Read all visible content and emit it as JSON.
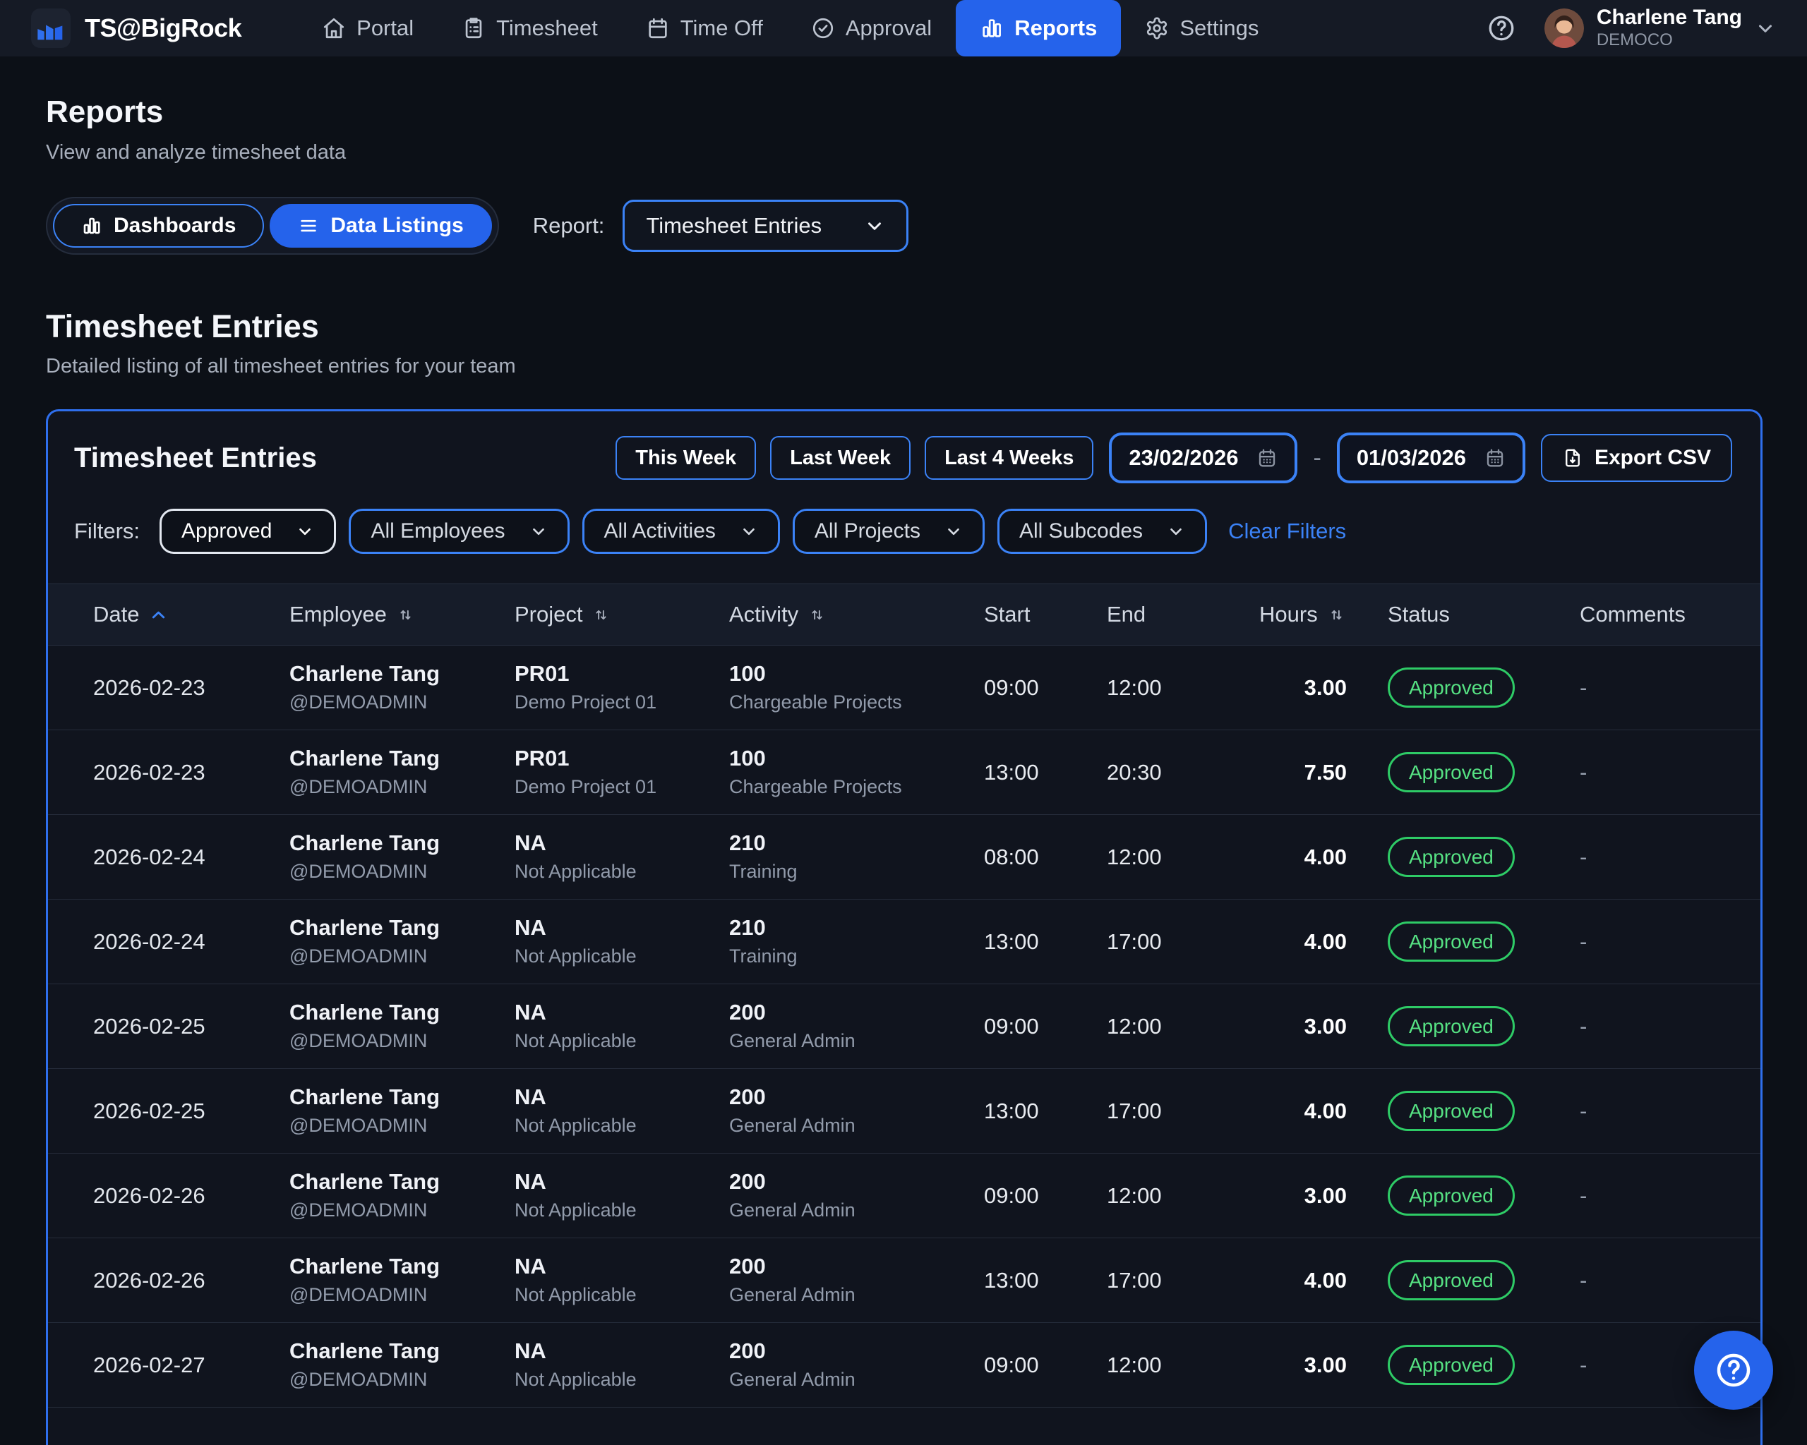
{
  "brand": "TS@BigRock",
  "nav": {
    "items": [
      {
        "label": "Portal",
        "icon": "home",
        "active": false
      },
      {
        "label": "Timesheet",
        "icon": "clipboard",
        "active": false
      },
      {
        "label": "Time Off",
        "icon": "calendar",
        "active": false
      },
      {
        "label": "Approval",
        "icon": "check-circle",
        "active": false
      },
      {
        "label": "Reports",
        "icon": "bar-chart",
        "active": true
      },
      {
        "label": "Settings",
        "icon": "gear",
        "active": false
      }
    ],
    "user": {
      "name": "Charlene Tang",
      "org": "DEMOCO"
    }
  },
  "page": {
    "title": "Reports",
    "subtitle": "View and analyze timesheet data"
  },
  "toggle": {
    "options": [
      {
        "label": "Dashboards",
        "icon": "bar-chart",
        "active": false
      },
      {
        "label": "Data Listings",
        "icon": "list",
        "active": true
      }
    ]
  },
  "report_picker": {
    "label": "Report:",
    "value": "Timesheet Entries"
  },
  "section": {
    "title": "Timesheet Entries",
    "subtitle": "Detailed listing of all timesheet entries for your team"
  },
  "card": {
    "title": "Timesheet Entries",
    "range_buttons": [
      "This Week",
      "Last Week",
      "Last 4 Weeks"
    ],
    "date_from": "23/02/2026",
    "date_separator": "-",
    "date_to": "01/03/2026",
    "export_label": "Export CSV",
    "filters_label": "Filters:",
    "filter_selects": [
      {
        "value": "Approved",
        "style": "status"
      },
      {
        "value": "All Employees",
        "style": "blue"
      },
      {
        "value": "All Activities",
        "style": "blue"
      },
      {
        "value": "All Projects",
        "style": "blue"
      },
      {
        "value": "All Subcodes",
        "style": "blue"
      }
    ],
    "clear_filters": "Clear Filters"
  },
  "table": {
    "columns": [
      {
        "label": "Date",
        "sort": "asc"
      },
      {
        "label": "Employee",
        "sort": "both"
      },
      {
        "label": "Project",
        "sort": "both"
      },
      {
        "label": "Activity",
        "sort": "both"
      },
      {
        "label": "Start",
        "sort": null
      },
      {
        "label": "End",
        "sort": null
      },
      {
        "label": "Hours",
        "sort": "both"
      },
      {
        "label": "Status",
        "sort": null
      },
      {
        "label": "Comments",
        "sort": null
      }
    ],
    "rows": [
      {
        "date": "2026-02-23",
        "employee": "Charlene Tang",
        "employee_sub": "@DEMOADMIN",
        "project": "PR01",
        "project_sub": "Demo Project 01",
        "activity": "100",
        "activity_sub": "Chargeable Projects",
        "start": "09:00",
        "end": "12:00",
        "hours": "3.00",
        "status": "Approved",
        "comments": "-"
      },
      {
        "date": "2026-02-23",
        "employee": "Charlene Tang",
        "employee_sub": "@DEMOADMIN",
        "project": "PR01",
        "project_sub": "Demo Project 01",
        "activity": "100",
        "activity_sub": "Chargeable Projects",
        "start": "13:00",
        "end": "20:30",
        "hours": "7.50",
        "status": "Approved",
        "comments": "-"
      },
      {
        "date": "2026-02-24",
        "employee": "Charlene Tang",
        "employee_sub": "@DEMOADMIN",
        "project": "NA",
        "project_sub": "Not Applicable",
        "activity": "210",
        "activity_sub": "Training",
        "start": "08:00",
        "end": "12:00",
        "hours": "4.00",
        "status": "Approved",
        "comments": "-"
      },
      {
        "date": "2026-02-24",
        "employee": "Charlene Tang",
        "employee_sub": "@DEMOADMIN",
        "project": "NA",
        "project_sub": "Not Applicable",
        "activity": "210",
        "activity_sub": "Training",
        "start": "13:00",
        "end": "17:00",
        "hours": "4.00",
        "status": "Approved",
        "comments": "-"
      },
      {
        "date": "2026-02-25",
        "employee": "Charlene Tang",
        "employee_sub": "@DEMOADMIN",
        "project": "NA",
        "project_sub": "Not Applicable",
        "activity": "200",
        "activity_sub": "General Admin",
        "start": "09:00",
        "end": "12:00",
        "hours": "3.00",
        "status": "Approved",
        "comments": "-"
      },
      {
        "date": "2026-02-25",
        "employee": "Charlene Tang",
        "employee_sub": "@DEMOADMIN",
        "project": "NA",
        "project_sub": "Not Applicable",
        "activity": "200",
        "activity_sub": "General Admin",
        "start": "13:00",
        "end": "17:00",
        "hours": "4.00",
        "status": "Approved",
        "comments": "-"
      },
      {
        "date": "2026-02-26",
        "employee": "Charlene Tang",
        "employee_sub": "@DEMOADMIN",
        "project": "NA",
        "project_sub": "Not Applicable",
        "activity": "200",
        "activity_sub": "General Admin",
        "start": "09:00",
        "end": "12:00",
        "hours": "3.00",
        "status": "Approved",
        "comments": "-"
      },
      {
        "date": "2026-02-26",
        "employee": "Charlene Tang",
        "employee_sub": "@DEMOADMIN",
        "project": "NA",
        "project_sub": "Not Applicable",
        "activity": "200",
        "activity_sub": "General Admin",
        "start": "13:00",
        "end": "17:00",
        "hours": "4.00",
        "status": "Approved",
        "comments": "-"
      },
      {
        "date": "2026-02-27",
        "employee": "Charlene Tang",
        "employee_sub": "@DEMOADMIN",
        "project": "NA",
        "project_sub": "Not Applicable",
        "activity": "200",
        "activity_sub": "General Admin",
        "start": "09:00",
        "end": "12:00",
        "hours": "3.00",
        "status": "Approved",
        "comments": "-"
      }
    ]
  },
  "colors": {
    "accent": "#2563eb",
    "accent_bright": "#3b82f6",
    "approved_text": "#56e283",
    "approved_border": "#2ecb66"
  }
}
